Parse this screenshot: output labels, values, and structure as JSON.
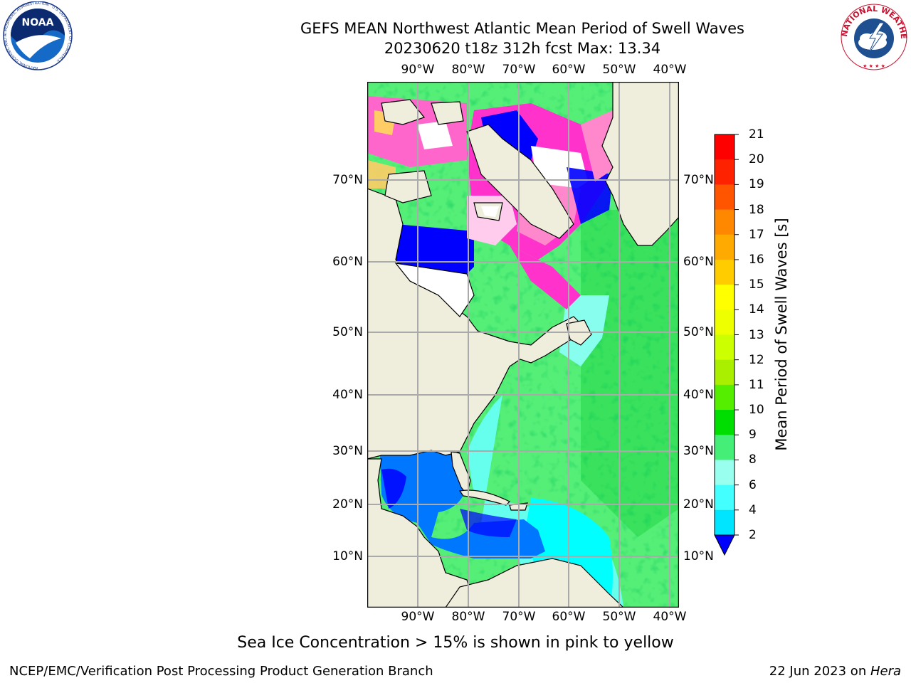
{
  "header": {
    "title_line1": "GEFS MEAN Northwest Atlantic Mean Period of Swell Waves",
    "title_line2": "20230620 t18z 312h fcst    Max: 13.34"
  },
  "map": {
    "lon_labels": [
      "90°W",
      "80°W",
      "70°W",
      "60°W",
      "50°W",
      "40°W"
    ],
    "lat_labels": [
      "70°N",
      "60°N",
      "50°N",
      "40°N",
      "30°N",
      "20°N",
      "10°N"
    ],
    "land_color": "#efeddc",
    "ice_colors": [
      "#ff33cc",
      "#ff88cc",
      "#ffcc66",
      "#ffff66"
    ]
  },
  "colorbar": {
    "title": "Mean Period of Swell Waves [s]",
    "ticks": [
      "2",
      "4",
      "6",
      "8",
      "9",
      "10",
      "11",
      "12",
      "13",
      "14",
      "15",
      "16",
      "17",
      "18",
      "19",
      "20",
      "21"
    ],
    "colors": [
      "#0000ff",
      "#0077ff",
      "#00e5ff",
      "#44ffff",
      "#99ffee",
      "#44ee77",
      "#00dd00",
      "#55ee00",
      "#aaee00",
      "#ccff00",
      "#eeff00",
      "#ffff00",
      "#ffcc00",
      "#ffaa00",
      "#ff8800",
      "#ff5500",
      "#ff2200",
      "#ff0000"
    ]
  },
  "caption": "Sea Ice Concentration > 15% is shown in pink to yellow",
  "footer": {
    "left": "NCEP/EMC/Verification Post Processing Product Generation Branch",
    "right_prefix": "22 Jun 2023 on ",
    "right_italic": "Hera"
  },
  "logos": {
    "noaa_text": "NOAA",
    "noaa_ring": "NATIONAL OCEANIC AND ATMOSPHERIC ADMINISTRATION · U.S. DEPARTMENT OF COMMERCE",
    "nws_ring": "NATIONAL WEATHER SERVICE"
  }
}
